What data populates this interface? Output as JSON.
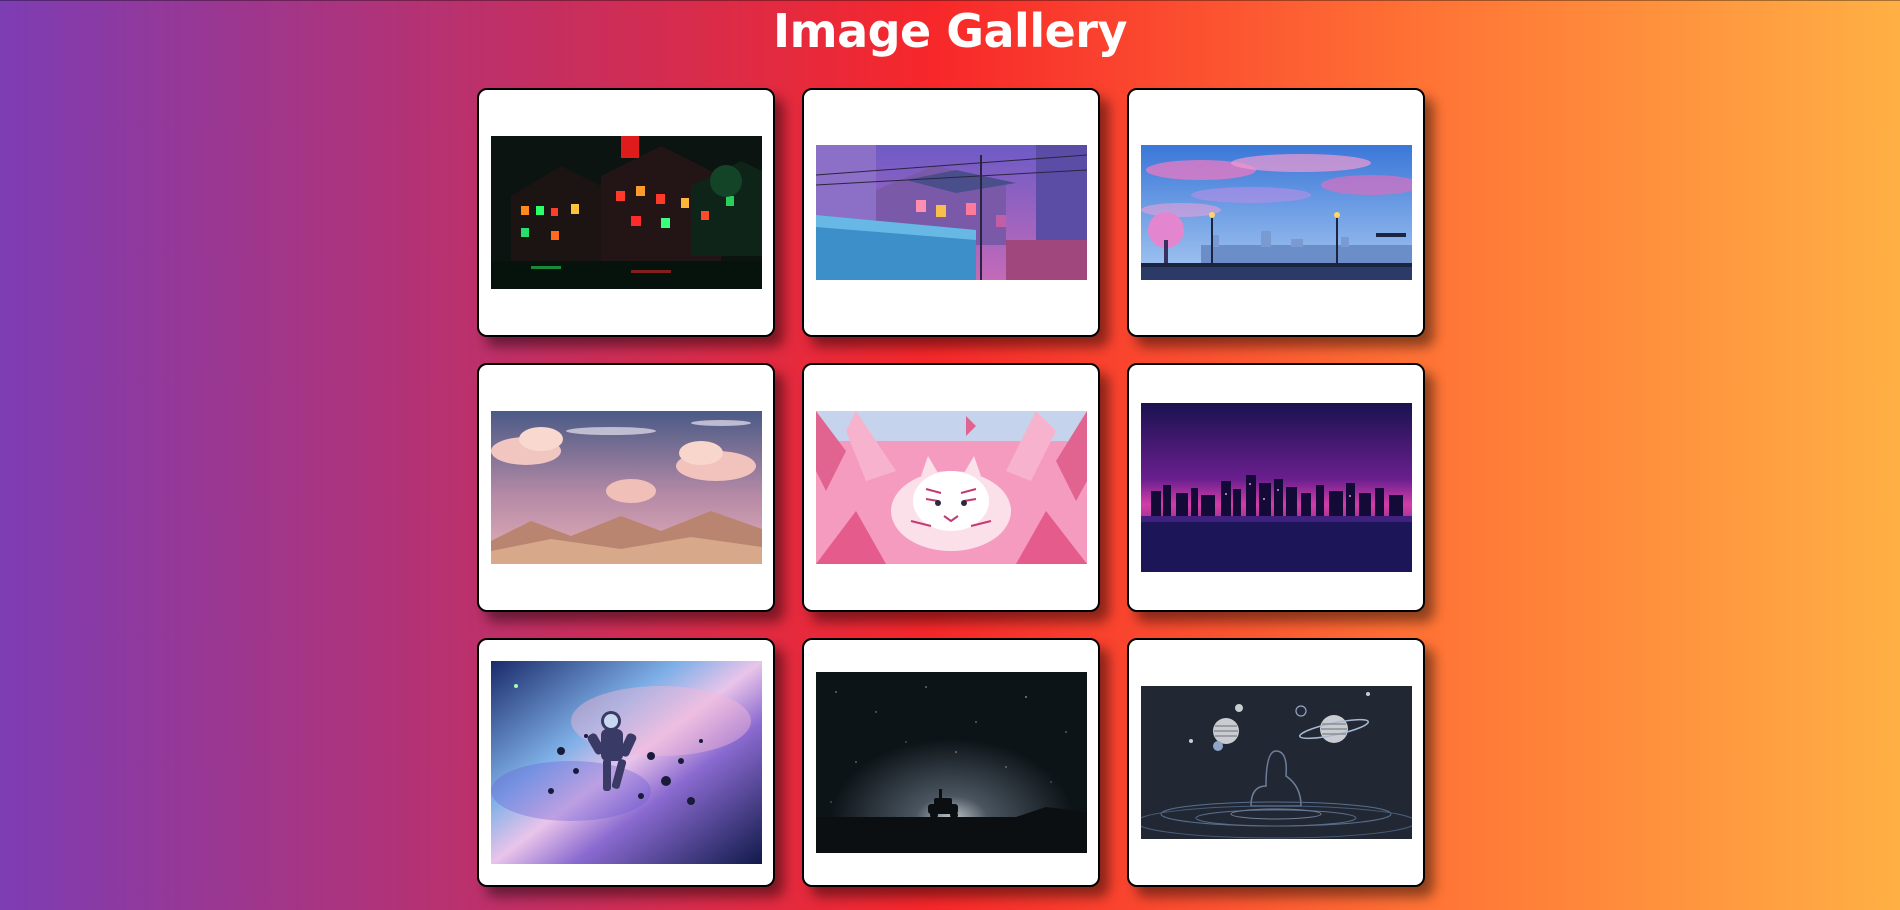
{
  "page": {
    "title": "Image Gallery"
  },
  "gallery": {
    "images": [
      {
        "name": "neon-red-green-houses"
      },
      {
        "name": "purple-rooftops-alley"
      },
      {
        "name": "blue-sky-cherry-blossom-city"
      },
      {
        "name": "pink-clouds-mountains"
      },
      {
        "name": "pink-tiger-leaves"
      },
      {
        "name": "purple-night-skyline"
      },
      {
        "name": "astronaut-nebula"
      },
      {
        "name": "starry-night-car"
      },
      {
        "name": "planets-ocean-figure"
      }
    ]
  },
  "colors": {
    "gradient_start": "#7d3db3",
    "gradient_mid": "#f7272a",
    "gradient_end": "#ffb045",
    "title": "#ffffff",
    "card_bg": "#ffffff",
    "card_border": "#000000"
  }
}
